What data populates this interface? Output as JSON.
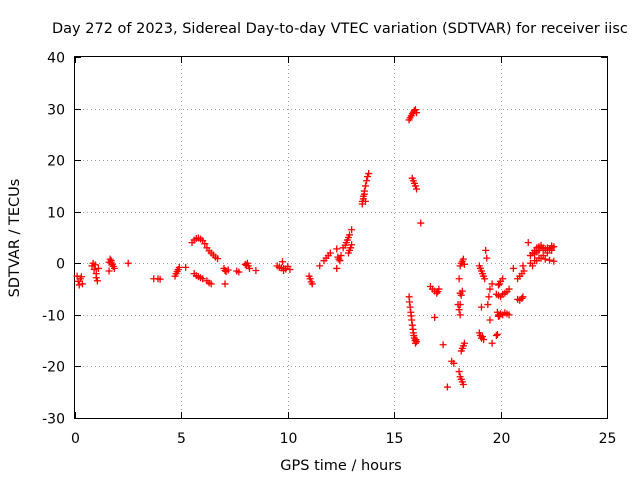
{
  "chart_data": {
    "type": "scatter",
    "title": "Day 272 of 2023, Sidereal Day-to-day VTEC variation (SDTVAR) for receiver iisc",
    "xlabel": "GPS time / hours",
    "ylabel": "SDTVAR / TECUs",
    "xlim": [
      0,
      25
    ],
    "ylim": [
      -30,
      40
    ],
    "xticks": [
      "0",
      "5",
      "10",
      "15",
      "20",
      "25"
    ],
    "yticks": [
      "-30",
      "-20",
      "-10",
      "0",
      "10",
      "20",
      "30",
      "40"
    ],
    "grid": true,
    "marker": "+",
    "color": "#ff0000",
    "series": [
      {
        "name": "SDTVAR",
        "x": [
          0.1,
          0.15,
          0.2,
          0.25,
          0.3,
          0.35,
          0.8,
          0.9,
          1.0,
          1.0,
          1.05,
          1.1,
          0.85,
          0.95,
          1.6,
          1.65,
          1.7,
          1.75,
          1.8,
          1.85,
          1.6,
          1.7,
          2.5,
          3.7,
          3.9,
          4.0,
          4.7,
          4.75,
          4.8,
          4.85,
          4.9,
          5.2,
          5.5,
          5.6,
          5.7,
          5.8,
          5.9,
          6.0,
          6.1,
          6.2,
          6.3,
          6.4,
          6.5,
          6.6,
          6.7,
          5.6,
          5.7,
          5.8,
          5.9,
          6.0,
          6.2,
          6.3,
          6.4,
          7.0,
          7.05,
          7.1,
          7.2,
          7.05,
          7.6,
          7.7,
          8.0,
          8.05,
          8.1,
          8.15,
          8.2,
          8.5,
          9.5,
          9.6,
          9.7,
          9.8,
          9.9,
          10.0,
          10.1,
          9.75,
          9.8,
          11.0,
          11.05,
          11.1,
          11.15,
          11.5,
          11.7,
          11.8,
          11.9,
          12.0,
          12.3,
          12.35,
          12.4,
          12.45,
          12.5,
          12.6,
          12.3,
          12.7,
          12.75,
          12.8,
          12.85,
          12.9,
          13.0,
          12.9,
          12.95,
          13.0,
          12.85,
          13.5,
          13.55,
          13.6,
          13.65,
          13.7,
          13.75,
          13.8,
          13.5,
          13.55,
          13.6,
          13.65,
          15.7,
          15.75,
          15.8,
          15.85,
          15.9,
          15.95,
          16.0,
          16.05,
          15.85,
          15.9,
          15.95,
          16.0,
          16.05,
          16.25,
          15.7,
          15.72,
          15.75,
          15.78,
          15.8,
          15.82,
          15.85,
          15.88,
          15.9,
          15.92,
          15.95,
          15.98,
          16.0,
          16.02,
          16.05,
          16.7,
          16.8,
          16.9,
          17.0,
          17.05,
          17.1,
          16.9,
          17.3,
          17.5,
          18.1,
          18.15,
          18.2,
          18.25,
          18.3,
          18.05,
          18.1,
          18.15,
          18.2,
          17.7,
          17.8,
          18.1,
          18.15,
          18.2,
          18.25,
          18.3,
          18.05,
          18.1,
          18.15,
          18.2,
          18.25,
          18.0,
          18.05,
          18.1,
          19.0,
          19.05,
          19.1,
          19.15,
          19.2,
          19.25,
          19.3,
          19.35,
          19.1,
          19.4,
          19.45,
          19.5,
          19.6,
          19.0,
          19.05,
          19.1,
          19.15,
          19.2,
          19.5,
          19.6,
          19.8,
          19.85,
          19.9,
          19.95,
          20.0,
          20.1,
          19.8,
          19.9,
          20.0,
          20.1,
          20.2,
          20.3,
          20.4,
          19.85,
          19.9,
          19.95,
          20.0,
          20.1,
          20.2,
          20.3,
          20.4,
          19.9,
          20.6,
          20.8,
          20.9,
          21.0,
          21.05,
          20.8,
          20.9,
          21.0,
          21.05,
          21.1,
          21.3,
          21.4,
          21.5,
          21.6,
          21.7,
          21.8,
          21.9,
          22.0,
          22.1,
          22.2,
          22.3,
          22.4,
          22.5,
          21.4,
          21.6,
          21.8,
          22.0,
          22.2,
          22.4,
          21.5,
          21.7,
          21.9,
          22.1,
          22.3,
          22.5,
          21.6,
          21.7,
          21.8,
          22.0,
          22.2,
          22.4
        ],
        "y": [
          -2.5,
          -3.5,
          -4.2,
          -3.0,
          -2.6,
          -4.0,
          -0.5,
          -1.2,
          -2.0,
          -2.8,
          -3.4,
          -1.0,
          0.0,
          -0.3,
          0.2,
          0.8,
          0.5,
          -0.2,
          -0.6,
          -1.0,
          -1.5,
          0.1,
          0.0,
          -3.0,
          -3.0,
          -3.1,
          -2.5,
          -2.0,
          -1.6,
          -1.2,
          -0.8,
          -0.8,
          4.0,
          4.5,
          4.8,
          4.9,
          4.7,
          4.4,
          3.8,
          3.0,
          2.4,
          2.0,
          1.6,
          1.2,
          0.9,
          -2.0,
          -2.4,
          -2.6,
          -2.8,
          -3.0,
          -3.4,
          -3.8,
          -4.0,
          -1.0,
          -1.4,
          -1.6,
          -1.3,
          -4.0,
          -1.5,
          -1.7,
          -0.2,
          -0.4,
          0.0,
          -0.5,
          -1.0,
          -1.4,
          -0.5,
          -0.8,
          -0.9,
          -1.0,
          -1.1,
          -0.6,
          -1.2,
          0.3,
          -1.4,
          -2.5,
          -3.0,
          -3.6,
          -4.0,
          -0.5,
          0.5,
          1.0,
          1.5,
          2.0,
          2.8,
          1.2,
          0.8,
          0.5,
          1.5,
          3.0,
          -1.0,
          3.5,
          4.0,
          4.5,
          5.0,
          5.5,
          6.5,
          2.5,
          3.0,
          3.6,
          2.0,
          12.0,
          13.0,
          14.0,
          15.0,
          16.0,
          16.8,
          17.4,
          11.5,
          12.5,
          13.4,
          12.0,
          27.8,
          28.2,
          28.6,
          29.0,
          29.3,
          29.6,
          29.8,
          29.2,
          16.5,
          16.0,
          15.5,
          15.0,
          14.4,
          7.8,
          -6.5,
          -7.5,
          -8.5,
          -9.5,
          -10.2,
          -11.0,
          -12.0,
          -12.8,
          -13.5,
          -14.0,
          -14.5,
          -15.0,
          -15.5,
          -14.8,
          -15.2,
          -4.5,
          -5.0,
          -5.4,
          -5.8,
          -5.5,
          -5.0,
          -10.5,
          -15.8,
          -24.0,
          -0.5,
          0.0,
          0.4,
          0.8,
          -0.2,
          -3.0,
          -5.8,
          -6.2,
          -5.4,
          -19.0,
          -19.4,
          -8.0,
          -17.0,
          -16.5,
          -16.0,
          -15.5,
          -21.0,
          -22.0,
          -22.5,
          -23.0,
          -23.5,
          -8.0,
          -9.0,
          -10.0,
          -0.5,
          -1.0,
          -1.5,
          -2.0,
          -2.5,
          -3.0,
          2.5,
          1.0,
          -8.5,
          -8.0,
          -6.5,
          -5.0,
          -4.0,
          -13.5,
          -14.0,
          -14.5,
          -14.2,
          -14.8,
          -11.0,
          -15.5,
          -14.0,
          -13.8,
          -4.2,
          -4.0,
          -3.5,
          -3.0,
          -6.0,
          -6.2,
          -6.5,
          -6.0,
          -5.8,
          -5.5,
          -5.0,
          -9.5,
          -10.0,
          -10.2,
          -9.8,
          -10.0,
          -9.6,
          -9.8,
          -10.0,
          -10.3,
          -1.0,
          -7.0,
          -7.2,
          -6.8,
          -6.5,
          -3.0,
          -2.5,
          -2.0,
          -0.5,
          -1.5,
          4.0,
          1.5,
          2.0,
          2.5,
          3.0,
          3.2,
          3.5,
          3.0,
          2.8,
          2.5,
          2.8,
          3.0,
          3.2,
          0.0,
          0.5,
          1.0,
          1.5,
          2.0,
          2.5,
          -0.5,
          0.5,
          1.0,
          0.8,
          0.6,
          0.4,
          1.8,
          2.2,
          2.5,
          2.8,
          3.0,
          3.4
        ]
      }
    ]
  }
}
